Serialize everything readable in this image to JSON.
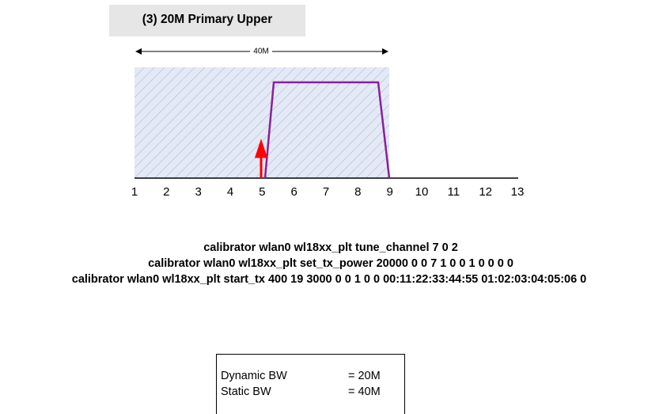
{
  "title": "(3) 20M Primary Upper",
  "span_label": "40M",
  "axis_labels": [
    "1",
    "2",
    "3",
    "4",
    "5",
    "6",
    "7",
    "8",
    "9",
    "10",
    "11",
    "12",
    "13"
  ],
  "commands": [
    "calibrator wlan0 wl18xx_plt tune_channel  7 0 2",
    "calibrator wlan0 wl18xx_plt set_tx_power 20000 0 0 7 1  0  0 1 0 0 0 0",
    "calibrator wlan0 wl18xx_plt start_tx 400 19 3000 0 0 1 0 0 00:11:22:33:44:55 01:02:03:04:05:06 0"
  ],
  "info": {
    "rows": [
      [
        "Dynamic BW",
        "= 20M"
      ],
      [
        "Static BW",
        "= 40M"
      ]
    ]
  }
}
